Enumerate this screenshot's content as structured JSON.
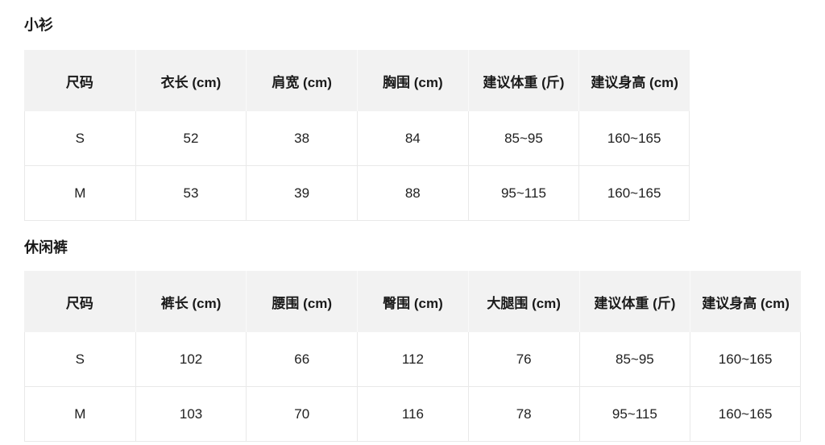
{
  "page": {
    "background": "#ffffff",
    "text_color": "#212121",
    "table_header_bg": "#f2f2f2",
    "table_border_color": "#e9e9e9"
  },
  "chart_data": [
    {
      "type": "table",
      "title": "小衫",
      "columns": [
        "尺码",
        "衣长 (cm)",
        "肩宽 (cm)",
        "胸围 (cm)",
        "建议体重 (斤)",
        "建议身高 (cm)"
      ],
      "rows": [
        [
          "S",
          52,
          38,
          84,
          "85~95",
          "160~165"
        ],
        [
          "M",
          53,
          39,
          88,
          "95~115",
          "160~165"
        ]
      ]
    },
    {
      "type": "table",
      "title": "休闲裤",
      "columns": [
        "尺码",
        "裤长 (cm)",
        "腰围 (cm)",
        "臀围 (cm)",
        "大腿围 (cm)",
        "建议体重 (斤)",
        "建议身高 (cm)"
      ],
      "rows": [
        [
          "S",
          102,
          66,
          112,
          76,
          "85~95",
          "160~165"
        ],
        [
          "M",
          103,
          70,
          116,
          78,
          "95~115",
          "160~165"
        ]
      ]
    }
  ]
}
